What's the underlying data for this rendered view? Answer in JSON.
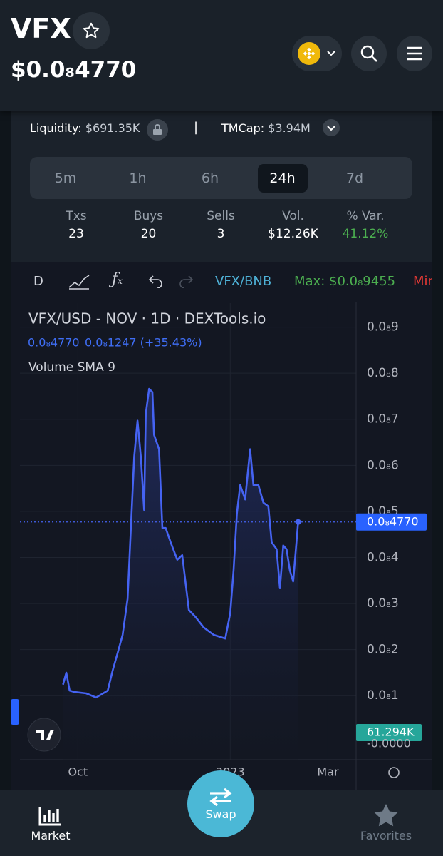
{
  "header": {
    "symbol": "VFX",
    "price": "$0.0₈4770"
  },
  "info": {
    "liquidity_label": "Liquidity:",
    "liquidity": "$691.35K",
    "tmcap_label": "TMCap:",
    "tmcap": "$3.94M"
  },
  "timeframes": {
    "options": [
      "5m",
      "1h",
      "6h",
      "24h",
      "7d"
    ],
    "active": "24h"
  },
  "stats": [
    {
      "label": "Txs",
      "value": "23"
    },
    {
      "label": "Buys",
      "value": "20"
    },
    {
      "label": "Sells",
      "value": "3"
    },
    {
      "label": "Vol.",
      "value": "$12.26K"
    },
    {
      "label": "% Var.",
      "value": "41.12%"
    }
  ],
  "toolbar": {
    "interval": "D",
    "pair": "VFX/BNB",
    "max_label": "Max:",
    "max": "$0.0₈9455",
    "min_label": "Min"
  },
  "chart_data": {
    "type": "line",
    "legend": {
      "title": "VFX/USD - NOV · 1D · DEXTools.io",
      "price": "0.0₈4770",
      "change": "0.0₈1247 (+35.43%)",
      "volume": "Volume SMA 9"
    },
    "color": "#4563f2",
    "x": [
      -9,
      -7,
      -5,
      -2,
      5,
      11,
      18,
      21,
      24,
      27,
      30,
      32,
      34,
      36,
      38,
      40,
      41,
      43,
      45,
      46,
      49,
      51,
      53,
      56,
      60,
      63,
      67,
      71,
      76,
      82,
      89,
      92,
      94,
      96,
      98,
      101,
      104,
      106,
      109,
      112,
      115,
      117,
      120,
      122,
      124,
      126,
      128,
      130,
      133
    ],
    "values": [
      1.24e-09,
      1.5e-09,
      1.11e-09,
      1.08e-09,
      1.05e-09,
      9.6e-10,
      1.11e-09,
      1.55e-09,
      1.93e-09,
      2.32e-09,
      3.1e-09,
      4.64e-09,
      6.19e-09,
      6.97e-09,
      6.19e-09,
      5.03e-09,
      7.12e-09,
      7.66e-09,
      7.59e-09,
      6.66e-09,
      6.35e-09,
      4.64e-09,
      4.64e-09,
      4.33e-09,
      3.95e-09,
      4.05e-09,
      2.86e-09,
      2.71e-09,
      2.48e-09,
      2.32e-09,
      2.24e-09,
      2.79e-09,
      3.72e-09,
      4.95e-09,
      5.57e-09,
      5.26e-09,
      6.35e-09,
      5.57e-09,
      5.57e-09,
      5.19e-09,
      5.11e-09,
      4.33e-09,
      4.18e-09,
      3.33e-09,
      4.26e-09,
      4.18e-09,
      3.72e-09,
      3.48e-09,
      4.77e-09
    ],
    "xlim": [
      -35,
      168
    ],
    "xticks": [
      {
        "value": 0,
        "label": "Oct"
      },
      {
        "value": 92,
        "label": "2023"
      },
      {
        "value": 151,
        "label": "Mar"
      }
    ],
    "ylim": [
      -3.9e-10,
      9.52e-09
    ],
    "yticks": [
      {
        "value": 1e-09,
        "label": "0.0₈1"
      },
      {
        "value": 2e-09,
        "label": "0.0₈2"
      },
      {
        "value": 3e-09,
        "label": "0.0₈3"
      },
      {
        "value": 4e-09,
        "label": "0.0₈4"
      },
      {
        "value": 5e-09,
        "label": "0.0₈5"
      },
      {
        "value": 6e-09,
        "label": "0.0₈6"
      },
      {
        "value": 7e-09,
        "label": "0.0₈7"
      },
      {
        "value": 8e-09,
        "label": "0.0₈8"
      },
      {
        "value": 9e-09,
        "label": "0.0₈9"
      }
    ],
    "grid": true,
    "last_price": {
      "value": 4.77e-09,
      "label": "0.0₈4770"
    },
    "volume_axis_label": "-0.0000",
    "volume_badge": "61.294K"
  },
  "nav": {
    "market": "Market",
    "swap": "Swap",
    "favorites": "Favorites"
  }
}
